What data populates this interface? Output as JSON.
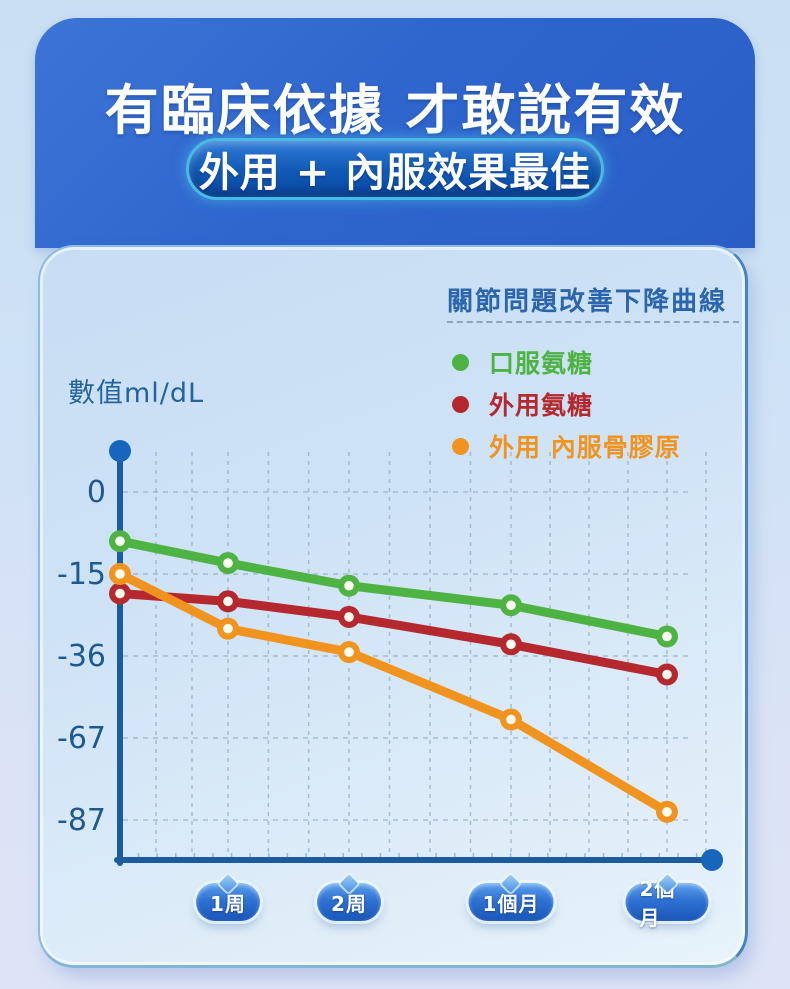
{
  "header": {
    "title": "有臨床依據 才敢說有效",
    "badge": "外用 + 內服效果最佳"
  },
  "chart": {
    "title": "關節問題改善下降曲線",
    "ylabel": "數值ml/dL",
    "y_ticks": [
      "0",
      "-15",
      "-36",
      "-67",
      "-87"
    ],
    "x_labels": [
      "1周",
      "2周",
      "1個月",
      "2個月"
    ],
    "legend": [
      {
        "label": "口服氨糖",
        "color": "#4db342"
      },
      {
        "label": "外用氨糖",
        "color": "#b5282d"
      },
      {
        "label": "外用 內服骨膠原",
        "color": "#f0941f"
      }
    ]
  },
  "chart_data": {
    "type": "line",
    "title": "關節問題改善下降曲線",
    "ylabel": "數值ml/dL",
    "x_tick_labels": [
      "1周",
      "2周",
      "1個月",
      "2個月"
    ],
    "x_note": "each series has 5 points: the first sits on the y-axis (start), then one per x tick label",
    "y_ticks": [
      0,
      -15,
      -36,
      -67,
      -87
    ],
    "ylim": [
      -95,
      8
    ],
    "grid": true,
    "legend_position": "top-right",
    "series": [
      {
        "name": "口服氨糖",
        "color": "#4db342",
        "values": [
          -9,
          -13,
          -18,
          -23,
          -31
        ]
      },
      {
        "name": "外用氨糖",
        "color": "#b5282d",
        "values": [
          -20,
          -22,
          -26,
          -33,
          -43
        ]
      },
      {
        "name": "外用 內服骨膠原",
        "color": "#f0941f",
        "values": [
          -15,
          -29,
          -35,
          -60,
          -85
        ]
      }
    ],
    "colors": {
      "axis": "#1a5c9c",
      "axis_dot": "#1765bd",
      "grid": "#7e99b4",
      "tick_label": "#1d5a8f",
      "marker_center": "#fffef2"
    }
  }
}
